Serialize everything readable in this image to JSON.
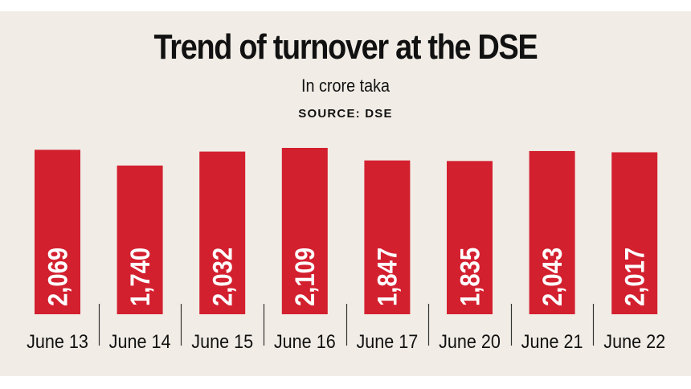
{
  "chart_data": {
    "type": "bar",
    "title": "Trend of turnover at the DSE",
    "subtitle": "In crore taka",
    "source": "SOURCE: DSE",
    "categories": [
      "June 13",
      "June 14",
      "June 15",
      "June 16",
      "June 17",
      "June 20",
      "June 21",
      "June 22"
    ],
    "values": [
      2069,
      1740,
      2032,
      2109,
      1847,
      1835,
      2043,
      2017
    ],
    "value_labels": [
      "2,069",
      "1,740",
      "2,032",
      "2,109",
      "1,847",
      "1,835",
      "2,043",
      "2,017"
    ],
    "bar_color": "#d3202f",
    "background_color": "#f1ede6",
    "grid": false,
    "legend": "none"
  }
}
